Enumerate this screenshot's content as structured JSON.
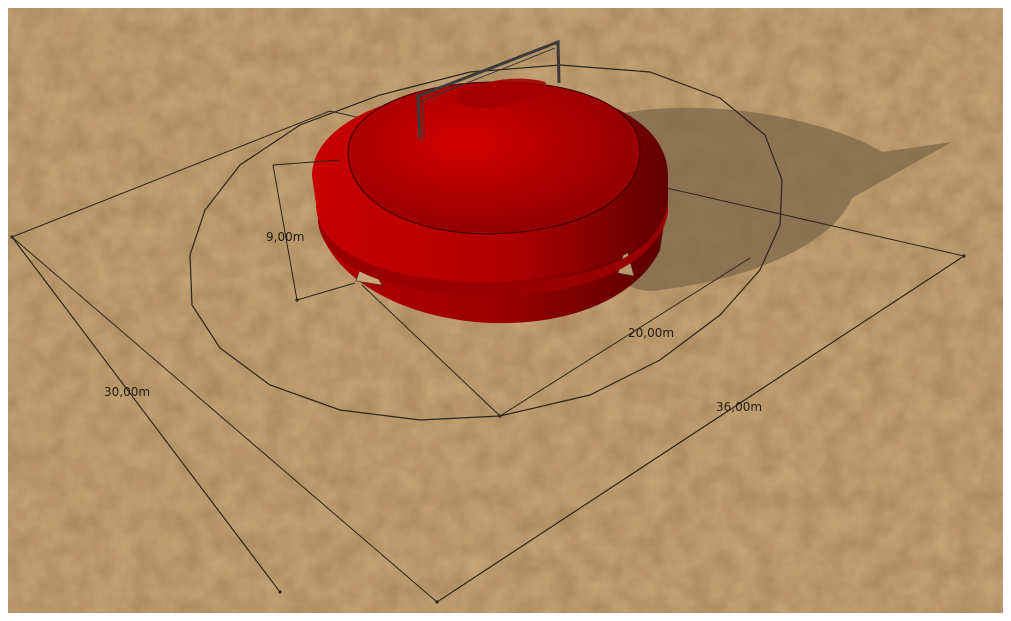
{
  "dimensions": {
    "height": "9,00m",
    "tent_diameter": "20,00m",
    "site_depth": "30,00m",
    "site_width": "36,00m"
  },
  "colors": {
    "ground": "#c8a677",
    "tent_red": "#b40000",
    "shadow": "#7e6749",
    "dimension_line": "#2a2520"
  }
}
